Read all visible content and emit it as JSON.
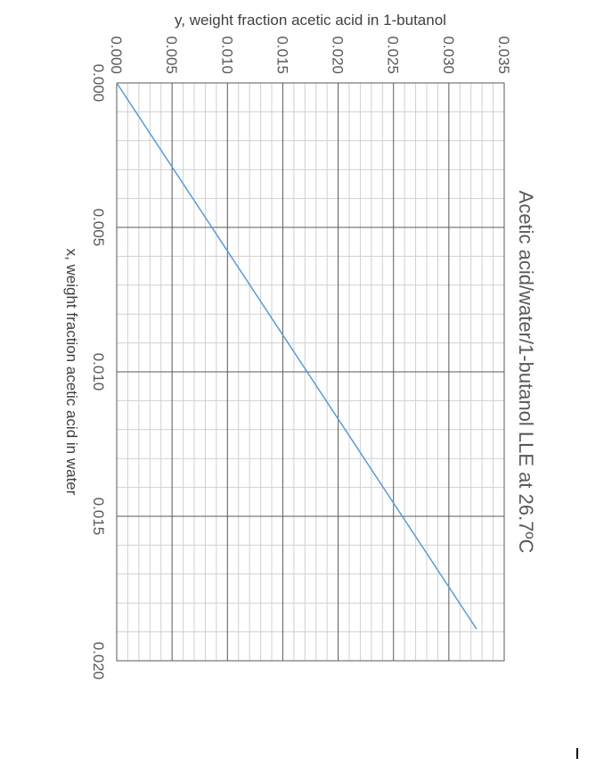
{
  "chart_data": {
    "type": "line",
    "title": "Acetic acid/water/1-butanol LLE at 26.7ºC",
    "xlabel": "x, weight fraction acetic acid in water",
    "ylabel": "y, weight fraction acetic acid in 1-butanol",
    "xlim": [
      0,
      0.02
    ],
    "ylim": [
      0,
      0.035
    ],
    "x_ticks": [
      "0.000",
      "0.005",
      "0.010",
      "0.015",
      "0.020"
    ],
    "y_ticks": [
      "0.000",
      "0.005",
      "0.010",
      "0.015",
      "0.020",
      "0.025",
      "0.030",
      "0.035"
    ],
    "grid": true,
    "orientation": "rotated 90 degrees clockwise",
    "series": [
      {
        "color": "#5B9BD5",
        "x": [
          0,
          0.0189
        ],
        "y": [
          0,
          0.0325
        ]
      }
    ]
  }
}
